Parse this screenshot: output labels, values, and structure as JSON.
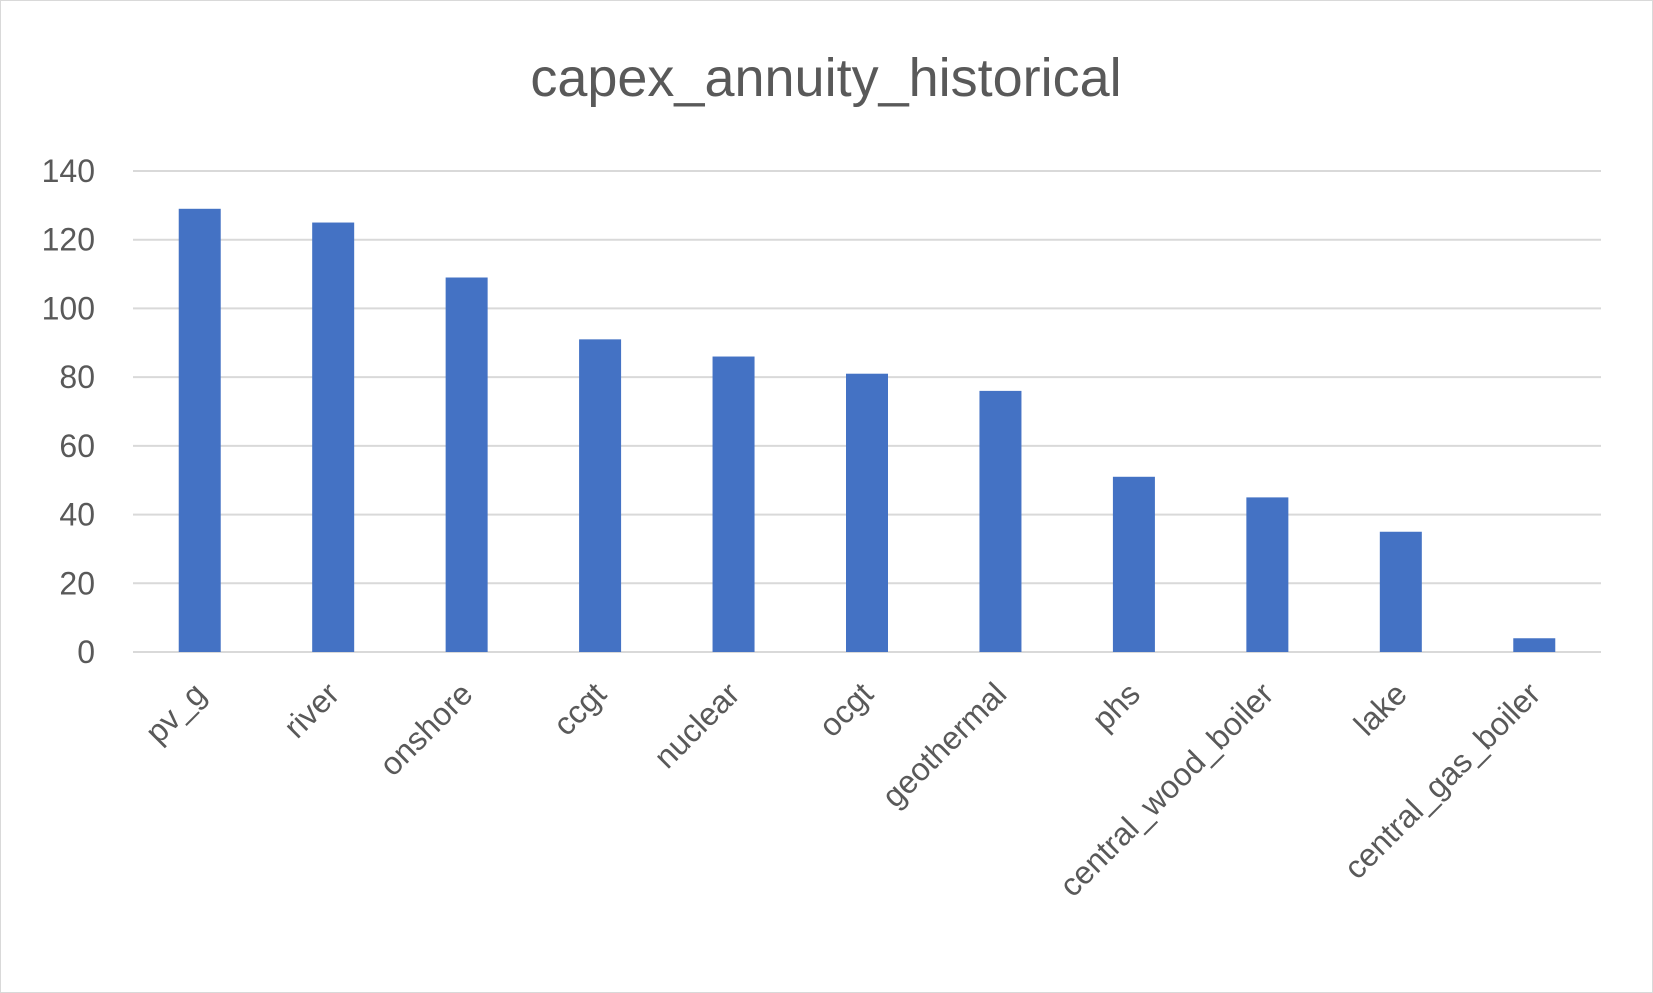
{
  "chart_data": {
    "type": "bar",
    "title": "capex_annuity_historical",
    "xlabel": "",
    "ylabel": "",
    "categories": [
      "pv_g",
      "river",
      "onshore",
      "ccgt",
      "nuclear",
      "ocgt",
      "geothermal",
      "phs",
      "central_wood_boiler",
      "lake",
      "central_gas_boiler"
    ],
    "values": [
      129,
      125,
      109,
      91,
      86,
      81,
      76,
      51,
      45,
      35,
      4
    ],
    "ylim": [
      0,
      140
    ],
    "yticks": [
      0,
      20,
      40,
      60,
      80,
      100,
      120,
      140
    ],
    "grid": true,
    "legend": "none",
    "bar_color": "#4472C4"
  }
}
